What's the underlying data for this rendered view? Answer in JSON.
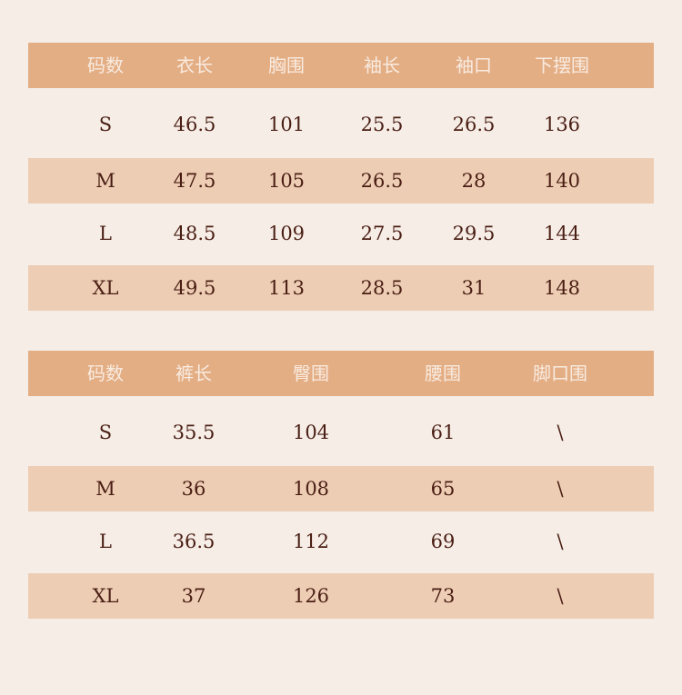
{
  "colors": {
    "background": "#f5ede6",
    "header": "#e4ae85",
    "band": "#edcdb4",
    "text": "#4a1e14",
    "header_text": "#f8ebe0"
  },
  "top_table": {
    "headers": [
      "码数",
      "衣长",
      "胸围",
      "袖长",
      "袖口",
      "下摆围"
    ],
    "rows": [
      [
        "S",
        "46.5",
        "101",
        "25.5",
        "26.5",
        "136"
      ],
      [
        "M",
        "47.5",
        "105",
        "26.5",
        "28",
        "140"
      ],
      [
        "L",
        "48.5",
        "109",
        "27.5",
        "29.5",
        "144"
      ],
      [
        "XL",
        "49.5",
        "113",
        "28.5",
        "31",
        "148"
      ]
    ]
  },
  "bottom_table": {
    "headers": [
      "码数",
      "裤长",
      "臀围",
      "腰围",
      "脚口围"
    ],
    "rows": [
      [
        "S",
        "35.5",
        "104",
        "61",
        "\\"
      ],
      [
        "M",
        "36",
        "108",
        "65",
        "\\"
      ],
      [
        "L",
        "36.5",
        "112",
        "69",
        "\\"
      ],
      [
        "XL",
        "37",
        "126",
        "73",
        "\\"
      ]
    ]
  }
}
